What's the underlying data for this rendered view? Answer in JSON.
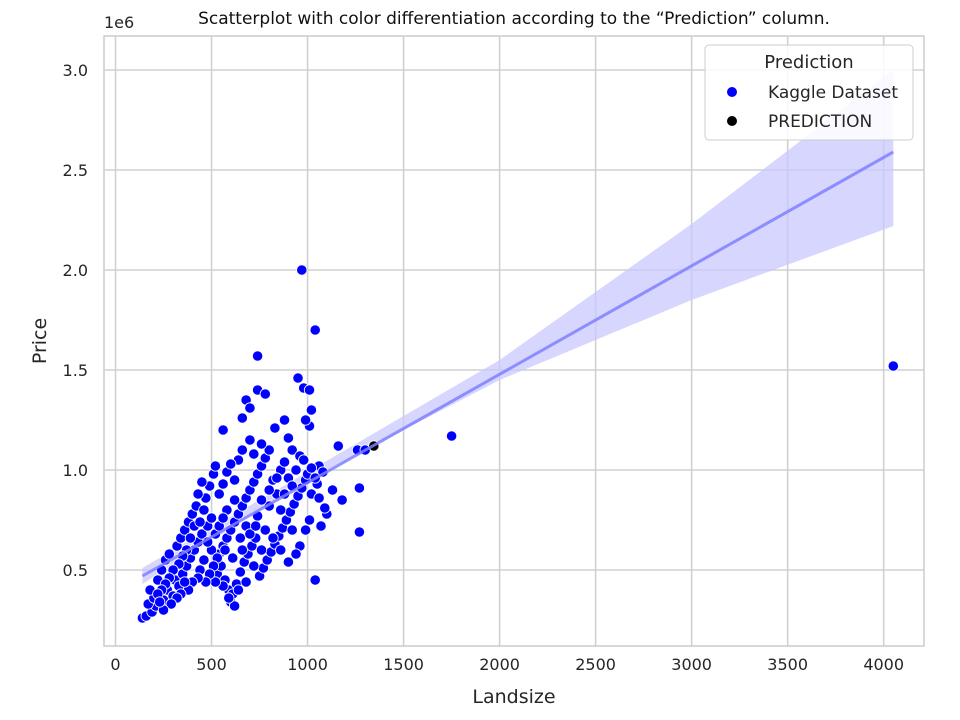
{
  "chart_data": {
    "type": "scatter",
    "title": "Scatterplot with color differentiation according to the “Prediction” column.",
    "xlabel": "Landsize",
    "ylabel": "Price",
    "y_offset_text": "1e6",
    "xlim": [
      -60,
      4210
    ],
    "ylim": [
      0.12,
      3.17
    ],
    "xticks": [
      0,
      500,
      1000,
      1500,
      2000,
      2500,
      3000,
      3500,
      4000
    ],
    "yticks": [
      0.5,
      1.0,
      1.5,
      2.0,
      2.5,
      3.0
    ],
    "xtick_labels": [
      "0",
      "500",
      "1000",
      "1500",
      "2000",
      "2500",
      "3000",
      "3500",
      "4000"
    ],
    "ytick_labels": [
      "0.5",
      "1.0",
      "1.5",
      "2.0",
      "2.5",
      "3.0"
    ],
    "grid": true,
    "legend": {
      "title": "Prediction",
      "placement": "top-right",
      "entries": [
        {
          "label": "Kaggle Dataset",
          "color": "#0000ff"
        },
        {
          "label": "PREDICTION",
          "color": "#000000"
        }
      ]
    },
    "regression": {
      "x_range": [
        140,
        4050
      ],
      "line": [
        [
          140,
          0.47
        ],
        [
          4050,
          2.59
        ]
      ],
      "ci_lower": [
        [
          140,
          0.43
        ],
        [
          1000,
          0.95
        ],
        [
          2000,
          1.45
        ],
        [
          3000,
          1.85
        ],
        [
          4050,
          2.22
        ]
      ],
      "ci_upper": [
        [
          140,
          0.51
        ],
        [
          1000,
          0.99
        ],
        [
          2000,
          1.55
        ],
        [
          3000,
          2.23
        ],
        [
          4050,
          3.0
        ]
      ],
      "line_color": "#8080ff",
      "band_color": "#c8c8ff"
    },
    "series": [
      {
        "name": "Kaggle Dataset",
        "color": "#0000ff",
        "points": [
          [
            4050,
            1.52
          ],
          [
            1750,
            1.17
          ],
          [
            1260,
            1.1
          ],
          [
            1300,
            1.1
          ],
          [
            1270,
            0.91
          ],
          [
            1270,
            0.69
          ],
          [
            1180,
            0.85
          ],
          [
            1160,
            1.12
          ],
          [
            1130,
            0.9
          ],
          [
            1100,
            0.78
          ],
          [
            1040,
            0.45
          ],
          [
            1040,
            1.7
          ],
          [
            970,
            2.0
          ],
          [
            740,
            1.57
          ],
          [
            950,
            1.46
          ],
          [
            980,
            1.41
          ],
          [
            1010,
            1.4
          ],
          [
            1020,
            1.3
          ],
          [
            1010,
            1.22
          ],
          [
            990,
            1.25
          ],
          [
            740,
            1.4
          ],
          [
            780,
            1.38
          ],
          [
            680,
            1.35
          ],
          [
            560,
            1.2
          ],
          [
            660,
            1.26
          ],
          [
            700,
            1.31
          ],
          [
            830,
            1.21
          ],
          [
            880,
            1.25
          ],
          [
            900,
            1.16
          ],
          [
            920,
            1.1
          ],
          [
            960,
            1.07
          ],
          [
            1060,
            1.02
          ],
          [
            1080,
            0.99
          ],
          [
            1050,
            0.93
          ],
          [
            1020,
            0.88
          ],
          [
            1060,
            0.86
          ],
          [
            1090,
            0.81
          ],
          [
            1070,
            0.72
          ],
          [
            1010,
            0.75
          ],
          [
            990,
            0.7
          ],
          [
            140,
            0.26
          ],
          [
            160,
            0.27
          ],
          [
            190,
            0.29
          ],
          [
            210,
            0.32
          ],
          [
            170,
            0.33
          ],
          [
            200,
            0.36
          ],
          [
            230,
            0.38
          ],
          [
            250,
            0.35
          ],
          [
            270,
            0.4
          ],
          [
            300,
            0.37
          ],
          [
            180,
            0.4
          ],
          [
            220,
            0.45
          ],
          [
            240,
            0.5
          ],
          [
            260,
            0.55
          ],
          [
            280,
            0.58
          ],
          [
            310,
            0.45
          ],
          [
            330,
            0.42
          ],
          [
            350,
            0.48
          ],
          [
            370,
            0.52
          ],
          [
            390,
            0.56
          ],
          [
            320,
            0.62
          ],
          [
            340,
            0.66
          ],
          [
            360,
            0.7
          ],
          [
            380,
            0.74
          ],
          [
            400,
            0.78
          ],
          [
            420,
            0.82
          ],
          [
            410,
            0.6
          ],
          [
            430,
            0.64
          ],
          [
            450,
            0.68
          ],
          [
            440,
            0.5
          ],
          [
            460,
            0.55
          ],
          [
            480,
            0.72
          ],
          [
            500,
            0.76
          ],
          [
            470,
            0.86
          ],
          [
            490,
            0.92
          ],
          [
            510,
            0.98
          ],
          [
            520,
            1.02
          ],
          [
            540,
            0.58
          ],
          [
            560,
            0.62
          ],
          [
            580,
            0.66
          ],
          [
            600,
            0.7
          ],
          [
            620,
            0.74
          ],
          [
            640,
            0.78
          ],
          [
            660,
            0.82
          ],
          [
            680,
            0.86
          ],
          [
            700,
            0.9
          ],
          [
            720,
            0.94
          ],
          [
            740,
            0.98
          ],
          [
            760,
            1.02
          ],
          [
            780,
            1.06
          ],
          [
            800,
            1.1
          ],
          [
            530,
            0.48
          ],
          [
            550,
            0.52
          ],
          [
            570,
            0.45
          ],
          [
            590,
            0.4
          ],
          [
            600,
            0.34
          ],
          [
            610,
            0.38
          ],
          [
            630,
            0.43
          ],
          [
            650,
            0.49
          ],
          [
            670,
            0.54
          ],
          [
            690,
            0.58
          ],
          [
            710,
            0.62
          ],
          [
            730,
            0.66
          ],
          [
            750,
            0.47
          ],
          [
            770,
            0.51
          ],
          [
            790,
            0.55
          ],
          [
            810,
            0.59
          ],
          [
            830,
            0.63
          ],
          [
            850,
            0.67
          ],
          [
            870,
            0.71
          ],
          [
            890,
            0.75
          ],
          [
            910,
            0.79
          ],
          [
            930,
            0.83
          ],
          [
            950,
            0.87
          ],
          [
            970,
            0.91
          ],
          [
            990,
            0.95
          ],
          [
            820,
            0.95
          ],
          [
            840,
            0.88
          ],
          [
            860,
            1.0
          ],
          [
            880,
            1.04
          ],
          [
            900,
            0.96
          ],
          [
            640,
            1.05
          ],
          [
            660,
            1.1
          ],
          [
            700,
            1.15
          ],
          [
            720,
            1.08
          ],
          [
            760,
            1.13
          ],
          [
            540,
            0.88
          ],
          [
            560,
            0.93
          ],
          [
            580,
            0.99
          ],
          [
            600,
            1.03
          ],
          [
            620,
            0.95
          ],
          [
            450,
            0.94
          ],
          [
            430,
            0.88
          ],
          [
            410,
            0.72
          ],
          [
            390,
            0.66
          ],
          [
            370,
            0.6
          ],
          [
            350,
            0.57
          ],
          [
            330,
            0.53
          ],
          [
            300,
            0.5
          ],
          [
            280,
            0.46
          ],
          [
            260,
            0.43
          ],
          [
            240,
            0.4
          ],
          [
            220,
            0.38
          ],
          [
            580,
            0.8
          ],
          [
            620,
            0.85
          ],
          [
            680,
            0.72
          ],
          [
            740,
            0.77
          ],
          [
            800,
            0.82
          ],
          [
            860,
            0.8
          ],
          [
            920,
            0.7
          ],
          [
            960,
            0.62
          ],
          [
            940,
            0.58
          ],
          [
            900,
            0.54
          ],
          [
            860,
            0.6
          ],
          [
            820,
            0.66
          ],
          [
            780,
            0.7
          ],
          [
            720,
            0.52
          ],
          [
            680,
            0.44
          ],
          [
            640,
            0.4
          ],
          [
            620,
            0.32
          ],
          [
            590,
            0.36
          ],
          [
            560,
            0.42
          ],
          [
            520,
            0.44
          ],
          [
            500,
            0.6
          ],
          [
            520,
            0.68
          ],
          [
            540,
            0.72
          ],
          [
            560,
            0.76
          ],
          [
            480,
            0.64
          ],
          [
            460,
            0.8
          ],
          [
            440,
            0.74
          ],
          [
            660,
            0.6
          ],
          [
            700,
            0.68
          ],
          [
            760,
            0.85
          ],
          [
            800,
            0.9
          ],
          [
            840,
            0.96
          ],
          [
            880,
            0.88
          ],
          [
            920,
            0.92
          ],
          [
            940,
            1.0
          ],
          [
            980,
            1.05
          ],
          [
            1000,
            0.98
          ],
          [
            1040,
            0.96
          ],
          [
            1020,
            1.01
          ],
          [
            760,
            0.6
          ],
          [
            730,
            0.72
          ],
          [
            650,
            0.66
          ],
          [
            610,
            0.56
          ],
          [
            570,
            0.6
          ],
          [
            530,
            0.56
          ],
          [
            510,
            0.52
          ],
          [
            490,
            0.48
          ],
          [
            470,
            0.44
          ],
          [
            430,
            0.46
          ],
          [
            400,
            0.44
          ],
          [
            380,
            0.4
          ],
          [
            360,
            0.44
          ],
          [
            340,
            0.38
          ],
          [
            320,
            0.36
          ],
          [
            290,
            0.33
          ],
          [
            250,
            0.3
          ],
          [
            230,
            0.34
          ]
        ]
      },
      {
        "name": "PREDICTION",
        "color": "#000000",
        "points": [
          [
            1345,
            1.12
          ]
        ]
      }
    ]
  }
}
